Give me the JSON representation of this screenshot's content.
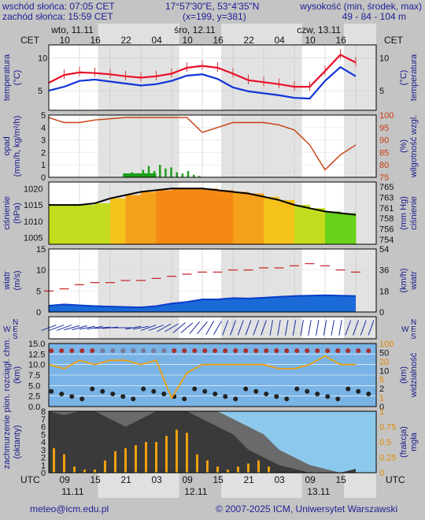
{
  "header": {
    "sunrise": "wschód słońca: 07:05 CET",
    "sunset": "zachód słońca: 15:59 CET",
    "coords": "17°57'30\"E, 53°4'35\"N",
    "grid": "(x=199, y=381)",
    "elevation_label": "wysokość (min, środek, max)",
    "elevation_values": "49 - 84 - 104 m"
  },
  "top_axis": {
    "tz": "CET",
    "days": [
      "wto, 11.11",
      "śro, 12.11",
      "czw, 13.11"
    ],
    "hours": [
      "10",
      "16",
      "22",
      "04",
      "10",
      "16",
      "22",
      "04",
      "10",
      "16"
    ]
  },
  "bottom_axis": {
    "tz": "UTC",
    "hours": [
      "09",
      "15",
      "21",
      "03",
      "09",
      "15",
      "21",
      "03",
      "09",
      "15"
    ],
    "dates": [
      "11.11",
      "12.11",
      "13.11"
    ]
  },
  "footer": {
    "email": "meteo@icm.edu.pl",
    "copyright": "© 2007-2025 ICM, Uniwersytet Warszawski"
  },
  "panels": {
    "temperature": {
      "left": "temperatura",
      "left_unit": "(°C)",
      "right_unit": "(°C)",
      "right": "temperatura"
    },
    "precip": {
      "left": "opad",
      "left_unit": "(mm/h, kg/m²/h)",
      "right_unit": "(%)",
      "right": "wilgotność wzgl."
    },
    "pressure": {
      "left": "ciśnienie",
      "left_unit": "(hPa)",
      "right_unit": "(mm Hg)",
      "right": "ciśnienie"
    },
    "wind": {
      "left": "wiatr",
      "left_unit": "(m/s)",
      "right_unit": "(km/h)",
      "right": "wiatr"
    },
    "direction": {
      "left_n": "N",
      "left_we": "W  E",
      "left_s": "S",
      "right_n": "N",
      "right_we": "W  E",
      "right_s": "S"
    },
    "cloudbase": {
      "left": "pion. rozciągł. chm.",
      "left_unit": "(km)",
      "right_unit": "(km)",
      "right": "widzialność"
    },
    "cloud": {
      "left": "zachmurzenie",
      "left_unit": "(oktanty)",
      "right_unit": "(frakcja)",
      "right": "mgła"
    }
  },
  "chart_data": [
    {
      "type": "line",
      "name": "temperature",
      "x_hours_utc_from_0600_11_11": [
        0,
        3,
        6,
        9,
        12,
        15,
        18,
        21,
        24,
        27,
        30,
        33,
        36,
        39,
        42,
        45,
        48,
        51,
        54,
        57,
        60
      ],
      "series": [
        {
          "values": [
            6.2,
            7.4,
            7.8,
            7.7,
            7.5,
            7.2,
            7.0,
            7.2,
            7.6,
            8.5,
            8.8,
            8.5,
            7.6,
            6.6,
            6.3,
            6.0,
            5.6,
            5.6,
            8.0,
            10.5,
            9.3
          ],
          "color": "#e8102a"
        },
        {
          "values": [
            5.0,
            5.6,
            6.5,
            6.7,
            6.4,
            6.1,
            5.8,
            6.0,
            6.5,
            7.3,
            7.5,
            6.8,
            5.5,
            4.9,
            4.6,
            4.3,
            3.9,
            3.8,
            6.5,
            8.6,
            7.2
          ],
          "color": "#1035d8"
        }
      ],
      "ylim": [
        2,
        12
      ],
      "yticks_left": [
        5,
        10
      ],
      "yticks_right": [
        5,
        10
      ]
    },
    {
      "type": "bar+line",
      "name": "precip-humidity",
      "precip_ylim": [
        0,
        5
      ],
      "precip_yticks": [
        0,
        1,
        2,
        3,
        4,
        5
      ],
      "precip_bars": {
        "x": [
          22,
          24,
          26,
          28,
          30,
          32,
          34,
          36,
          38,
          40,
          42,
          44,
          46,
          48
        ],
        "values": [
          0.1,
          0.4,
          0.2,
          0.6,
          0.9,
          0.5,
          1.0,
          0.7,
          0.8,
          0.4,
          0.3,
          0.5,
          0.2,
          0.1
        ]
      },
      "humidity_ylim": [
        75,
        100
      ],
      "humidity_yticks": [
        75,
        80,
        85,
        90,
        95,
        100
      ],
      "humidity": {
        "x": [
          0,
          3,
          6,
          9,
          12,
          15,
          18,
          21,
          24,
          27,
          30,
          33,
          36,
          39,
          42,
          45,
          48,
          51,
          54,
          57,
          60
        ],
        "values": [
          99,
          97,
          97,
          98,
          98.5,
          99,
          99,
          99,
          99,
          99,
          93,
          95,
          97,
          97,
          97,
          96,
          94,
          88,
          78,
          84,
          88
        ],
        "color": "#c83c10"
      }
    },
    {
      "type": "line",
      "name": "pressure",
      "x": [
        0,
        3,
        6,
        9,
        12,
        15,
        18,
        21,
        24,
        27,
        30,
        33,
        36,
        39,
        42,
        45,
        48,
        51,
        54,
        57,
        60
      ],
      "values": [
        1015,
        1015,
        1015,
        1015.5,
        1017,
        1018,
        1019,
        1019.5,
        1020,
        1020,
        1020,
        1019.5,
        1019,
        1018.5,
        1017.5,
        1016.5,
        1015,
        1014,
        1013,
        1012.5,
        1012
      ],
      "ylim": [
        1003,
        1022
      ],
      "yticks_left": [
        1005,
        1010,
        1015,
        1020
      ],
      "yticks_right": [
        754,
        756,
        758,
        761,
        763,
        765
      ],
      "color": "#000000"
    },
    {
      "type": "line+area",
      "name": "wind",
      "gusts": {
        "x": [
          0,
          3,
          6,
          9,
          12,
          15,
          18,
          21,
          24,
          27,
          30,
          33,
          36,
          39,
          42,
          45,
          48,
          51,
          54,
          57,
          60
        ],
        "values": [
          5,
          5.5,
          6.5,
          7,
          7,
          7.5,
          7.5,
          8,
          8.5,
          9,
          9.5,
          9.5,
          10,
          10,
          10.5,
          10.5,
          11,
          11.5,
          11,
          10,
          9.5
        ],
        "color": "#c82020"
      },
      "speed": {
        "x": [
          0,
          3,
          6,
          9,
          12,
          15,
          18,
          21,
          24,
          27,
          30,
          33,
          36,
          39,
          42,
          45,
          48,
          51,
          54,
          57,
          60
        ],
        "values": [
          1.5,
          1.8,
          1.6,
          1.4,
          1.3,
          1.2,
          1.1,
          1.4,
          2,
          2.4,
          3,
          3,
          3.3,
          3.2,
          3.4,
          3.6,
          3.8,
          3.9,
          4,
          3.9,
          3.8
        ],
        "color": "#0a3cc8"
      },
      "ylim": [
        0,
        15
      ],
      "yticks_left": [
        0,
        5,
        10,
        15
      ],
      "yticks_right": [
        0,
        18,
        36,
        54
      ]
    },
    {
      "type": "table",
      "name": "wind-direction",
      "x": [
        0,
        3,
        6,
        9,
        12,
        15,
        18,
        21,
        24,
        27,
        30,
        33,
        36,
        39,
        42,
        45,
        48,
        51,
        54,
        57,
        60
      ],
      "direction_deg": [
        250,
        250,
        255,
        260,
        265,
        270,
        260,
        250,
        240,
        230,
        220,
        210,
        200,
        200,
        200,
        190,
        190,
        190,
        190,
        190,
        200
      ]
    },
    {
      "type": "scatter+line",
      "name": "cloudbase-visibility",
      "ylim_left": [
        0,
        15
      ],
      "yticks_left": [
        0.0,
        2.5,
        5.0,
        7.5,
        10.0,
        12.5,
        15.0
      ],
      "ylim_right": [
        0,
        100
      ],
      "yticks_right": [
        0,
        1,
        2,
        5,
        10,
        20,
        50,
        100
      ],
      "visibility": {
        "x": [
          0,
          3,
          6,
          9,
          12,
          15,
          18,
          21,
          24,
          27,
          30,
          33,
          36,
          39,
          42,
          45,
          48,
          51,
          54,
          57,
          60
        ],
        "values": [
          10,
          9,
          11,
          10,
          11,
          11,
          10,
          11,
          2,
          8,
          10,
          10,
          10,
          10,
          10,
          9,
          9,
          10,
          12,
          10,
          10
        ],
        "color": "#f0a010"
      }
    },
    {
      "type": "area",
      "name": "cloud-fog",
      "ylim_left": [
        0,
        8
      ],
      "yticks_left": [
        0,
        1,
        2,
        3,
        4,
        5,
        6,
        7,
        8
      ],
      "ylim_right": [
        0,
        1
      ],
      "yticks_right": [
        0,
        0.25,
        0.5,
        0.75,
        1
      ],
      "low_cloud": {
        "x": [
          0,
          3,
          6,
          9,
          12,
          15,
          18,
          21,
          24,
          27,
          30,
          33,
          36,
          39,
          42,
          45,
          48,
          51,
          54,
          57,
          60
        ],
        "values": [
          8,
          7.5,
          8,
          8,
          7,
          6,
          7,
          8,
          8,
          8,
          7,
          6,
          5,
          3,
          2,
          1,
          0.5,
          0,
          0,
          0,
          0.5
        ]
      },
      "total_cloud": {
        "x": [
          0,
          3,
          6,
          9,
          12,
          15,
          18,
          21,
          24,
          27,
          30,
          33,
          36,
          39,
          42,
          45,
          48,
          51,
          54,
          57,
          60
        ],
        "values": [
          8,
          8,
          8,
          8,
          8,
          8,
          8,
          8,
          8,
          8,
          8,
          8,
          7,
          6,
          5,
          3,
          2,
          1,
          0.5,
          0,
          0.5
        ]
      },
      "fog_bars": {
        "x": [
          1,
          3,
          5,
          7,
          9,
          11,
          13,
          15,
          17,
          19,
          21,
          23,
          25,
          27,
          29,
          31,
          33,
          35,
          37,
          39,
          41,
          43
        ],
        "values": [
          0.4,
          0.3,
          0.1,
          0.05,
          0.05,
          0.2,
          0.35,
          0.4,
          0.45,
          0.5,
          0.5,
          0.6,
          0.7,
          0.65,
          0.3,
          0.2,
          0.1,
          0.05,
          0.1,
          0.15,
          0.2,
          0.1
        ]
      }
    }
  ]
}
